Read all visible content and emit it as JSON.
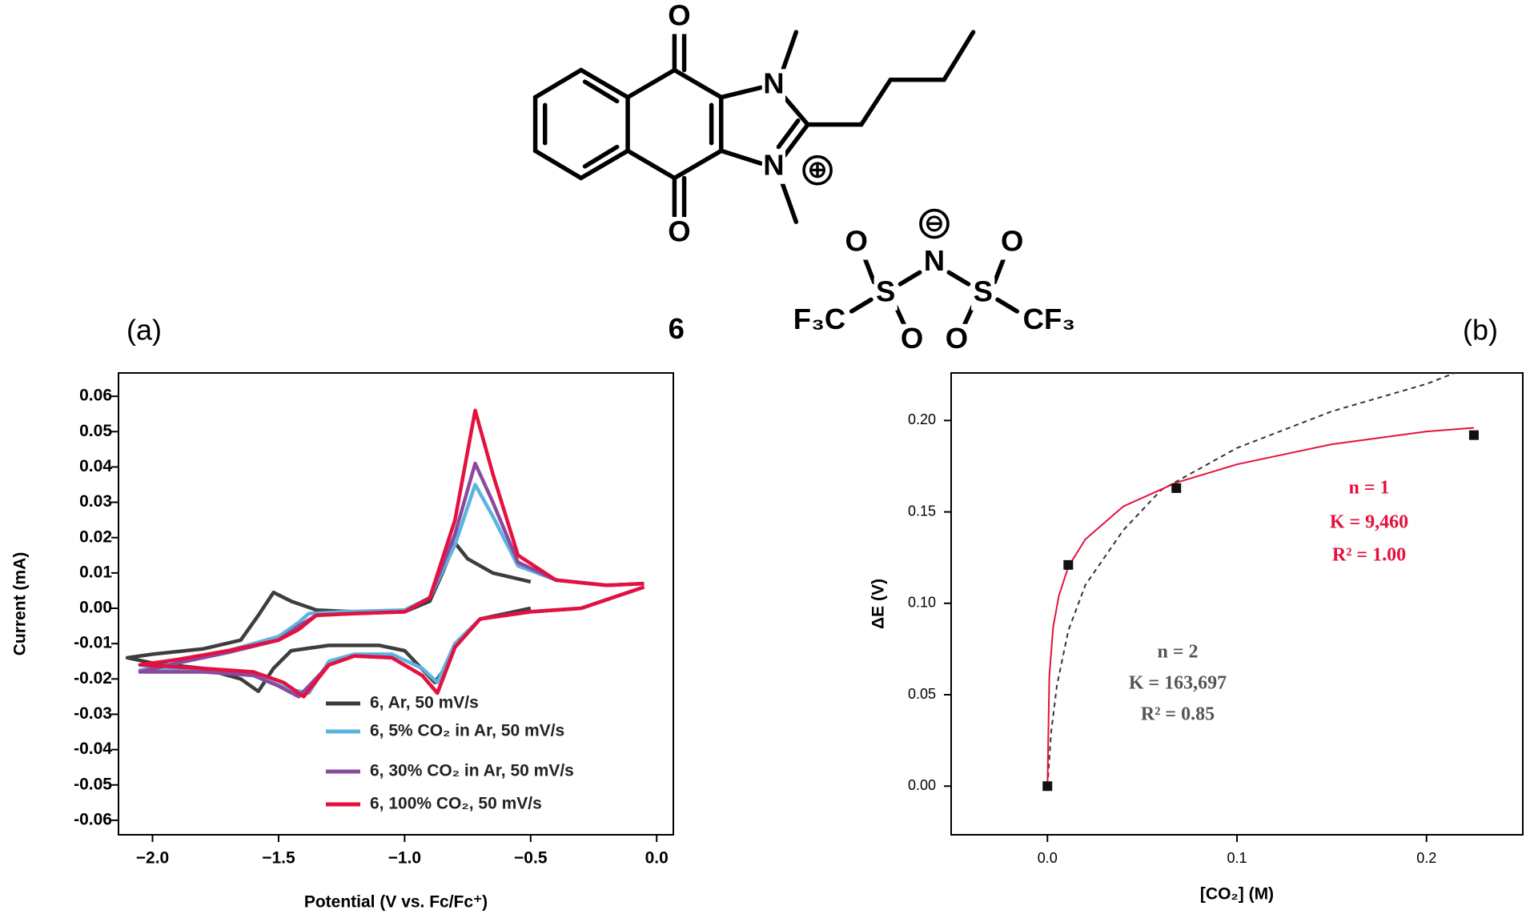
{
  "structure": {
    "compound": "6",
    "atoms": [
      "O",
      "O",
      "N",
      "N",
      "⊕",
      "N",
      "⊖",
      "S",
      "S",
      "O",
      "O",
      "O",
      "O",
      "F₃C",
      "CF₃"
    ]
  },
  "chart_data": [
    {
      "type": "line",
      "label": "(a)",
      "x_label": "Potential (V vs. Fc/Fc⁺)",
      "y_label": "Current (mA)",
      "xlim": [
        -2.135,
        0.066
      ],
      "ylim": [
        -0.0641,
        0.0666
      ],
      "xticks": [
        {
          "value": -2.0,
          "label": "−2.0"
        },
        {
          "value": -1.5,
          "label": "−1.5"
        },
        {
          "value": -1.0,
          "label": "−1.0"
        },
        {
          "value": -0.5,
          "label": "−0.5"
        },
        {
          "value": 0,
          "label": "0.0"
        }
      ],
      "yticks": [
        0.06,
        0.05,
        0.04,
        0.03,
        0.02,
        0.01,
        {
          "value": 0,
          "label": "0.00"
        },
        -0.01,
        -0.02,
        -0.03,
        -0.04,
        -0.05,
        -0.06
      ],
      "legend": "lower right",
      "series": [
        {
          "name": "6, Ar, 50 mV/s",
          "color": "#3d3d3d",
          "x": [
            -0.5,
            -0.7,
            -0.8,
            -0.85,
            -0.88,
            -0.92,
            -1.0,
            -1.1,
            -1.3,
            -1.45,
            -1.52,
            -1.58,
            -1.65,
            -1.8,
            -2.0,
            -2.1,
            -2.0,
            -1.8,
            -1.65,
            -1.58,
            -1.52,
            -1.45,
            -1.35,
            -1.2,
            -1.0,
            -0.9,
            -0.85,
            -0.8,
            -0.75,
            -0.65,
            -0.5
          ],
          "values": [
            0.0,
            -0.003,
            -0.01,
            -0.018,
            -0.021,
            -0.018,
            -0.012,
            -0.0105,
            -0.0105,
            -0.012,
            -0.017,
            -0.0235,
            -0.02,
            -0.017,
            -0.0155,
            -0.014,
            -0.013,
            -0.0115,
            -0.009,
            -0.002,
            0.0045,
            0.002,
            -0.0005,
            -0.001,
            -0.001,
            0.002,
            0.01,
            0.0185,
            0.014,
            0.01,
            0.0075
          ]
        },
        {
          "name": "6, 5% CO₂ in Ar, 50 mV/s",
          "color": "#5db3e0",
          "x": [
            -0.05,
            -0.3,
            -0.5,
            -0.7,
            -0.8,
            -0.87,
            -0.93,
            -1.05,
            -1.2,
            -1.3,
            -1.38,
            -1.45,
            -1.6,
            -1.8,
            -2.05,
            -1.9,
            -1.7,
            -1.5,
            -1.42,
            -1.38,
            -1.25,
            -1.0,
            -0.9,
            -0.8,
            -0.72,
            -0.65,
            -0.55,
            -0.4,
            -0.2,
            -0.05
          ],
          "values": [
            0.006,
            0.0,
            -0.001,
            -0.003,
            -0.01,
            -0.021,
            -0.017,
            -0.013,
            -0.013,
            -0.015,
            -0.024,
            -0.023,
            -0.019,
            -0.0175,
            -0.0175,
            -0.0155,
            -0.012,
            -0.008,
            -0.004,
            -0.0015,
            -0.001,
            -0.0005,
            0.003,
            0.018,
            0.035,
            0.026,
            0.012,
            0.008,
            0.0065,
            0.007
          ]
        },
        {
          "name": "6, 30% CO₂ in Ar, 50 mV/s",
          "color": "#8a4a9e",
          "x": [
            -0.05,
            -0.3,
            -0.5,
            -0.7,
            -0.8,
            -0.87,
            -0.93,
            -1.05,
            -1.2,
            -1.3,
            -1.42,
            -1.5,
            -1.6,
            -1.8,
            -2.05,
            -1.9,
            -1.7,
            -1.5,
            -1.42,
            -1.35,
            -1.2,
            -1.0,
            -0.9,
            -0.8,
            -0.72,
            -0.65,
            -0.55,
            -0.4,
            -0.2,
            -0.05
          ],
          "values": [
            0.006,
            0.0,
            -0.001,
            -0.003,
            -0.011,
            -0.024,
            -0.019,
            -0.014,
            -0.0135,
            -0.016,
            -0.025,
            -0.022,
            -0.019,
            -0.018,
            -0.018,
            -0.0155,
            -0.0125,
            -0.009,
            -0.005,
            -0.002,
            -0.0015,
            -0.001,
            0.003,
            0.021,
            0.041,
            0.03,
            0.013,
            0.008,
            0.0065,
            0.007
          ]
        },
        {
          "name": "6, 100% CO₂, 50 mV/s",
          "color": "#e5103d",
          "x": [
            -0.05,
            -0.3,
            -0.5,
            -0.7,
            -0.8,
            -0.87,
            -0.93,
            -1.05,
            -1.2,
            -1.3,
            -1.4,
            -1.48,
            -1.6,
            -1.8,
            -2.05,
            -1.9,
            -1.7,
            -1.5,
            -1.42,
            -1.35,
            -1.2,
            -1.0,
            -0.9,
            -0.8,
            -0.72,
            -0.65,
            -0.55,
            -0.4,
            -0.2,
            -0.05
          ],
          "values": [
            0.006,
            0.0,
            -0.001,
            -0.003,
            -0.011,
            -0.024,
            -0.019,
            -0.014,
            -0.0135,
            -0.016,
            -0.025,
            -0.021,
            -0.018,
            -0.017,
            -0.016,
            -0.0145,
            -0.012,
            -0.009,
            -0.006,
            -0.002,
            -0.0015,
            -0.001,
            0.003,
            0.025,
            0.056,
            0.038,
            0.015,
            0.008,
            0.0065,
            0.007
          ]
        }
      ]
    },
    {
      "type": "scatter",
      "label": "(b)",
      "x_label": "[CO₂] (M)",
      "y_label": "ΔE (V)",
      "xlim": [
        -0.0508,
        0.2508
      ],
      "ylim": [
        -0.0266,
        0.226
      ],
      "xticks": [
        {
          "value": 0,
          "label": "0.0"
        },
        0.1,
        0.2
      ],
      "yticks": [
        {
          "value": 0,
          "label": "0.00"
        },
        0.05,
        {
          "value": 0.1,
          "label": "0.10"
        },
        0.15,
        {
          "value": 0.2,
          "label": "0.20"
        }
      ],
      "series": [
        {
          "mode": "dashed",
          "color": "#333333",
          "x": [
            0,
            0.002,
            0.005,
            0.011,
            0.02,
            0.04,
            0.06,
            0.1,
            0.15,
            0.2,
            0.215
          ],
          "values": [
            0,
            0.03,
            0.055,
            0.085,
            0.11,
            0.14,
            0.162,
            0.185,
            0.205,
            0.22,
            0.226
          ]
        },
        {
          "mode": "line",
          "color": "#e5103d",
          "x": [
            0,
            0.001,
            0.003,
            0.006,
            0.011,
            0.02,
            0.04,
            0.068,
            0.1,
            0.15,
            0.2,
            0.225
          ],
          "values": [
            0,
            0.06,
            0.087,
            0.104,
            0.12,
            0.135,
            0.153,
            0.166,
            0.176,
            0.187,
            0.194,
            0.196
          ]
        },
        {
          "mode": "markers",
          "color": "#111111",
          "x": [
            0,
            0.011,
            0.068,
            0.225
          ],
          "values": [
            0,
            0.121,
            0.163,
            0.192
          ]
        }
      ],
      "annotations": [
        {
          "text": "n = 1",
          "color": "#e5103d"
        },
        {
          "text": "K = 9,460",
          "color": "#e5103d"
        },
        {
          "text": "R² = 1.00",
          "color": "#e5103d"
        },
        {
          "text": "n = 2",
          "color": "#555555"
        },
        {
          "text": "K = 163,697",
          "color": "#555555"
        },
        {
          "text": "R² = 0.85",
          "color": "#555555"
        }
      ]
    }
  ]
}
